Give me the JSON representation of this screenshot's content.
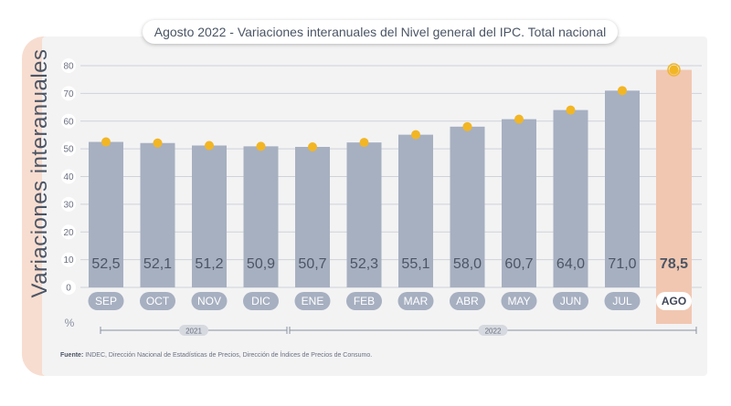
{
  "chart_data": {
    "type": "bar",
    "title": "Agosto 2022 - Variaciones interanuales del Nivel general del IPC. Total nacional",
    "ylabel": "Variaciones interanuales",
    "yunit": "%",
    "ylim": [
      0,
      80
    ],
    "yticks": [
      0,
      10,
      20,
      30,
      40,
      50,
      60,
      70,
      80
    ],
    "grid": true,
    "categories": [
      "SEP",
      "OCT",
      "NOV",
      "DIC",
      "ENE",
      "FEB",
      "MAR",
      "ABR",
      "MAY",
      "JUN",
      "JUL",
      "AGO"
    ],
    "values": [
      52.5,
      52.1,
      51.2,
      50.9,
      50.7,
      52.3,
      55.1,
      58.0,
      60.7,
      64.0,
      71.0,
      78.5
    ],
    "value_labels": [
      "52,5",
      "52,1",
      "51,2",
      "50,9",
      "50,7",
      "52,3",
      "55,1",
      "58,0",
      "60,7",
      "64,0",
      "71,0",
      "78,5"
    ],
    "highlighted_category": "AGO",
    "year_groups": [
      {
        "label": "2021",
        "categories": [
          "SEP",
          "OCT",
          "NOV",
          "DIC"
        ]
      },
      {
        "label": "2022",
        "categories": [
          "ENE",
          "FEB",
          "MAR",
          "ABR",
          "MAY",
          "JUN",
          "JUL",
          "AGO"
        ]
      }
    ],
    "colors": {
      "bar": "#a7b0c1",
      "highlight_bar": "#f1c7b1",
      "marker": "#f2b624",
      "label_text": "#4b5565",
      "grid": "#cfd2d8"
    }
  },
  "source": {
    "label": "Fuente:",
    "text": "INDEC, Dirección Nacional de Estadísticas de Precios, Dirección de Índices de Precios de Consumo."
  }
}
